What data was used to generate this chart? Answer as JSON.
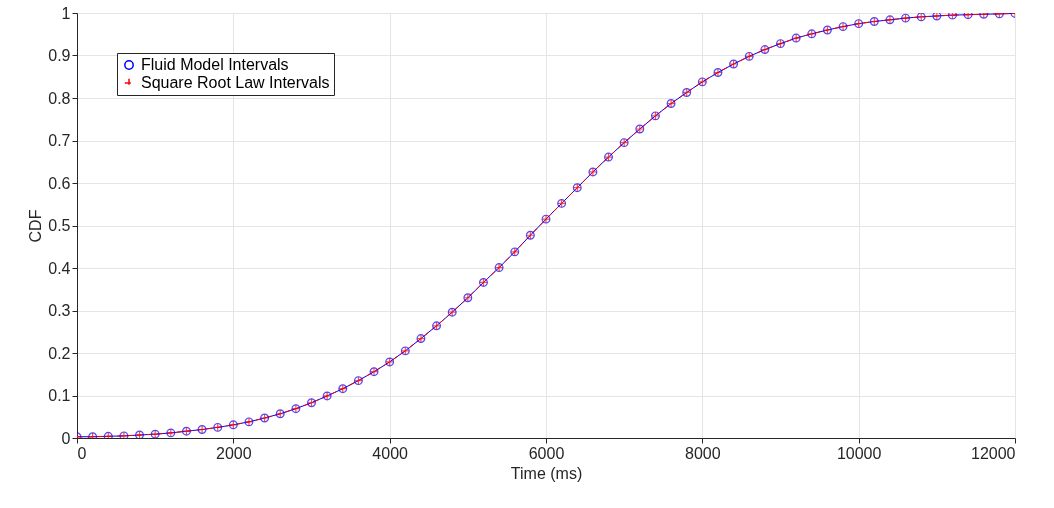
{
  "chart_data": {
    "type": "line",
    "xlabel": "Time (ms)",
    "ylabel": "CDF",
    "x": [
      0,
      200,
      400,
      600,
      800,
      1000,
      1200,
      1400,
      1600,
      1800,
      2000,
      2200,
      2400,
      2600,
      2800,
      3000,
      3200,
      3400,
      3600,
      3800,
      4000,
      4200,
      4400,
      4600,
      4800,
      5000,
      5200,
      5400,
      5600,
      5800,
      6000,
      6200,
      6400,
      6600,
      6800,
      7000,
      7200,
      7400,
      7600,
      7800,
      8000,
      8200,
      8400,
      8600,
      8800,
      9000,
      9200,
      9400,
      9600,
      9800,
      10000,
      10200,
      10400,
      10600,
      10800,
      11000,
      11200,
      11400,
      11600,
      11800,
      12000
    ],
    "series": [
      {
        "name": "Fluid Model Intervals",
        "color": "#0000ff",
        "marker": "circle",
        "line_style": "solid",
        "values": [
          0.003,
          0.003,
          0.004,
          0.005,
          0.007,
          0.009,
          0.012,
          0.016,
          0.02,
          0.025,
          0.031,
          0.038,
          0.047,
          0.057,
          0.069,
          0.083,
          0.099,
          0.116,
          0.135,
          0.156,
          0.179,
          0.205,
          0.234,
          0.264,
          0.296,
          0.33,
          0.366,
          0.401,
          0.438,
          0.477,
          0.515,
          0.552,
          0.589,
          0.626,
          0.661,
          0.695,
          0.727,
          0.758,
          0.787,
          0.813,
          0.838,
          0.86,
          0.88,
          0.898,
          0.914,
          0.928,
          0.941,
          0.951,
          0.96,
          0.968,
          0.975,
          0.98,
          0.984,
          0.988,
          0.991,
          0.993,
          0.995,
          0.996,
          0.997,
          0.998,
          0.999
        ]
      },
      {
        "name": "Square Root Law Intervals",
        "color": "#ff0000",
        "marker": "cross",
        "line_style": "dashed",
        "values": [
          0.003,
          0.003,
          0.004,
          0.005,
          0.007,
          0.009,
          0.012,
          0.016,
          0.02,
          0.025,
          0.031,
          0.038,
          0.047,
          0.057,
          0.069,
          0.083,
          0.099,
          0.116,
          0.135,
          0.156,
          0.179,
          0.205,
          0.234,
          0.264,
          0.296,
          0.33,
          0.366,
          0.401,
          0.438,
          0.477,
          0.515,
          0.552,
          0.589,
          0.626,
          0.661,
          0.695,
          0.727,
          0.758,
          0.787,
          0.813,
          0.838,
          0.86,
          0.88,
          0.898,
          0.914,
          0.928,
          0.941,
          0.951,
          0.96,
          0.968,
          0.975,
          0.98,
          0.984,
          0.988,
          0.991,
          0.993,
          0.995,
          0.996,
          0.997,
          0.998,
          0.999
        ]
      }
    ],
    "xlim": [
      0,
      12000
    ],
    "xticks": [
      0,
      2000,
      4000,
      6000,
      8000,
      10000,
      12000
    ],
    "ylim": [
      0,
      1
    ],
    "yticks": [
      0,
      0.1,
      0.2,
      0.3,
      0.4,
      0.5,
      0.6,
      0.7,
      0.8,
      0.9,
      1
    ],
    "grid": true,
    "legend": "top left"
  }
}
